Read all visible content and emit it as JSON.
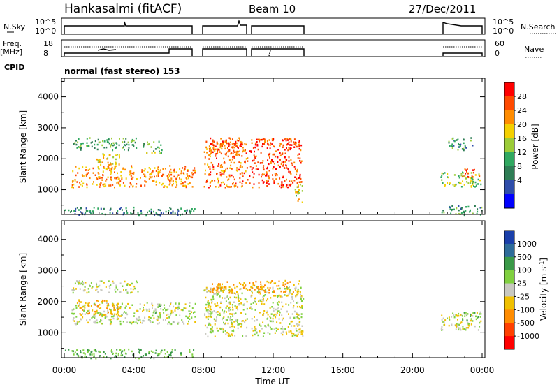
{
  "header": {
    "station": "Hankasalmi (fitACF)",
    "beam": "Beam 10",
    "date": "27/Dec/2011"
  },
  "strips": {
    "nsky_label": "N.Sky",
    "nsky_ticks": [
      "10^5",
      "10^0"
    ],
    "nsearch_label": "N.Search",
    "nsearch_ticks": [
      "10^5",
      "10^0"
    ],
    "freq_label": "Freq.",
    "freq_unit": "[MHz]",
    "freq_ticks": [
      "18",
      "8"
    ],
    "nave_label": "Nave",
    "nave_ticks": [
      "60",
      "0"
    ],
    "cpid_label": "CPID",
    "cpid_value": "normal (fast stereo) 153"
  },
  "x_axis": {
    "label": "Time UT",
    "ticks": [
      "00:00",
      "04:00",
      "08:00",
      "12:00",
      "16:00",
      "20:00",
      "00:00"
    ],
    "range_hours": [
      0,
      24
    ]
  },
  "panels": {
    "power": {
      "ylabel": "Slant Range [km]",
      "yticks": [
        "4000",
        "3000",
        "2000",
        "1000"
      ],
      "cbar_label": "Power [dB]",
      "cbar_ticks": [
        "28",
        "24",
        "20",
        "16",
        "12",
        "8",
        "4"
      ],
      "cbar_colors": [
        "#ff0000",
        "#ff4a00",
        "#ff8c00",
        "#f4d000",
        "#9ccc38",
        "#30a860",
        "#2e7d55",
        "#2f4eaa",
        "#0000ff"
      ]
    },
    "velocity": {
      "ylabel": "Slant Range [km]",
      "yticks": [
        "4000",
        "3000",
        "2000",
        "1000"
      ],
      "cbar_label": "Velocity [m s^-1]",
      "cbar_ticks": [
        "1000",
        "500",
        "100",
        "25",
        "-25",
        "-100",
        "-500",
        "-1000"
      ],
      "cbar_colors": [
        "#1a3faa",
        "#2e6c9a",
        "#3a9a48",
        "#80d040",
        "#c8c8c0",
        "#f0c000",
        "#ff8c00",
        "#ff4000",
        "#ff0000"
      ]
    }
  },
  "chart_data": {
    "type": "heatmap",
    "x_unit": "hours UT",
    "y_unit": "km",
    "y_range": [
      200,
      4600
    ],
    "data_gaps_hours": [
      [
        7.5,
        8.0
      ],
      [
        10.5,
        10.6
      ],
      [
        13.8,
        21.5
      ]
    ],
    "power_clusters": [
      {
        "t": [
          0.4,
          7.5
        ],
        "r": [
          1100,
          1800
        ],
        "level": 22
      },
      {
        "t": [
          0.5,
          4.2
        ],
        "r": [
          2300,
          2700
        ],
        "level": 10
      },
      {
        "t": [
          1.8,
          3.2
        ],
        "r": [
          1700,
          2200
        ],
        "level": 18
      },
      {
        "t": [
          4.5,
          5.6
        ],
        "r": [
          2200,
          2600
        ],
        "level": 12
      },
      {
        "t": [
          8.0,
          10.5
        ],
        "r": [
          1100,
          2600
        ],
        "level": 24
      },
      {
        "t": [
          8.3,
          10.4
        ],
        "r": [
          2200,
          2700
        ],
        "level": 26
      },
      {
        "t": [
          10.6,
          13.6
        ],
        "r": [
          1100,
          2700
        ],
        "level": 27
      },
      {
        "t": [
          13.2,
          13.7
        ],
        "r": [
          600,
          1200
        ],
        "level": 16
      },
      {
        "t": [
          21.6,
          23.9
        ],
        "r": [
          1100,
          1600
        ],
        "level": 14
      },
      {
        "t": [
          22.8,
          23.9
        ],
        "r": [
          1400,
          1700
        ],
        "level": 24
      },
      {
        "t": [
          22.0,
          23.5
        ],
        "r": [
          2300,
          2700
        ],
        "level": 8
      },
      {
        "t": [
          0.0,
          7.5
        ],
        "r": [
          200,
          450
        ],
        "level": 6
      },
      {
        "t": [
          21.6,
          24.0
        ],
        "r": [
          200,
          500
        ],
        "level": 8
      }
    ],
    "velocity_clusters": [
      {
        "t": [
          0.4,
          7.5
        ],
        "r": [
          1300,
          2000
        ],
        "v": 25
      },
      {
        "t": [
          0.8,
          3.2
        ],
        "r": [
          1600,
          2100
        ],
        "v": -100
      },
      {
        "t": [
          0.4,
          4.2
        ],
        "r": [
          2300,
          2700
        ],
        "v": 0
      },
      {
        "t": [
          8.0,
          13.7
        ],
        "r": [
          900,
          2500
        ],
        "v": 0
      },
      {
        "t": [
          8.3,
          10.4
        ],
        "r": [
          2300,
          2700
        ],
        "v": -100
      },
      {
        "t": [
          10.6,
          13.6
        ],
        "r": [
          2300,
          2700
        ],
        "v": -120
      },
      {
        "t": [
          21.6,
          23.9
        ],
        "r": [
          1100,
          1700
        ],
        "v": 0
      },
      {
        "t": [
          22.8,
          23.9
        ],
        "r": [
          1400,
          1700
        ],
        "v": 100
      },
      {
        "t": [
          0.0,
          7.5
        ],
        "r": [
          200,
          500
        ],
        "v": 100
      }
    ]
  }
}
